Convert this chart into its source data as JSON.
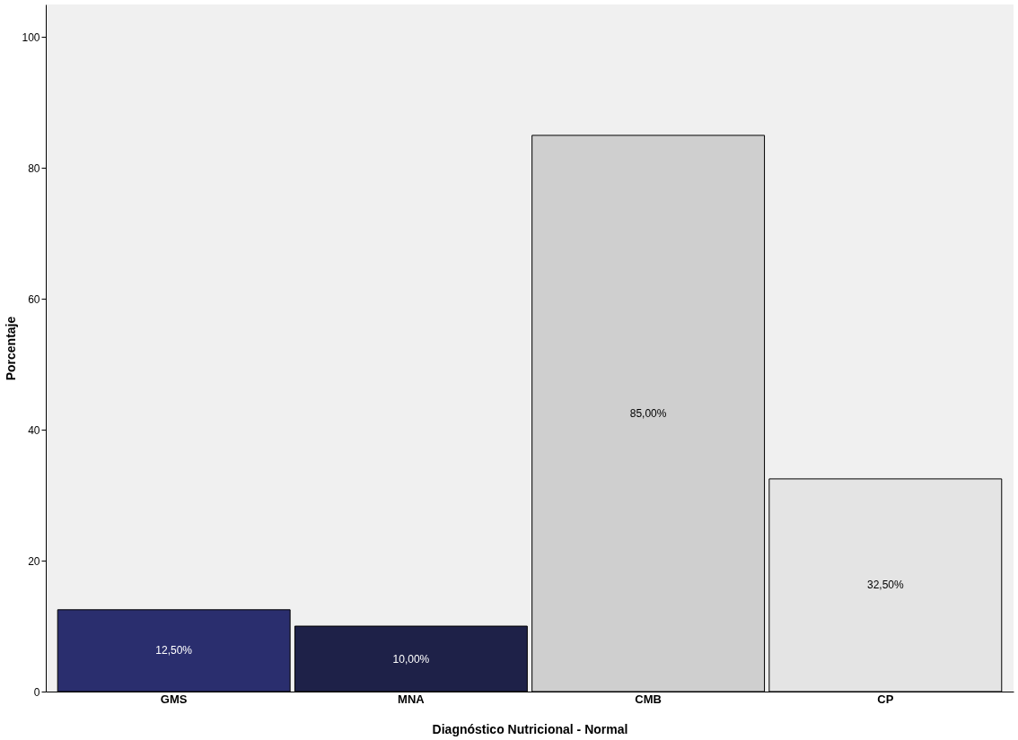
{
  "chart_data": {
    "type": "bar",
    "xlabel": "Diagnóstico Nutricional - Normal",
    "ylabel": "Porcentaje",
    "categories": [
      "GMS",
      "MNA",
      "CMB",
      "CP"
    ],
    "values": [
      12.5,
      10,
      85,
      32.5
    ],
    "colors": [
      "#2a2e6e",
      "#1e2148",
      "#cfcfcf",
      "#e4e4e4"
    ],
    "value_labels": [
      "12,50%",
      "10,00%",
      "85,00%",
      "32,50%"
    ],
    "ylim": [
      0,
      105
    ],
    "yticks": [
      0,
      20,
      40,
      60,
      80,
      100
    ],
    "grid": false
  }
}
